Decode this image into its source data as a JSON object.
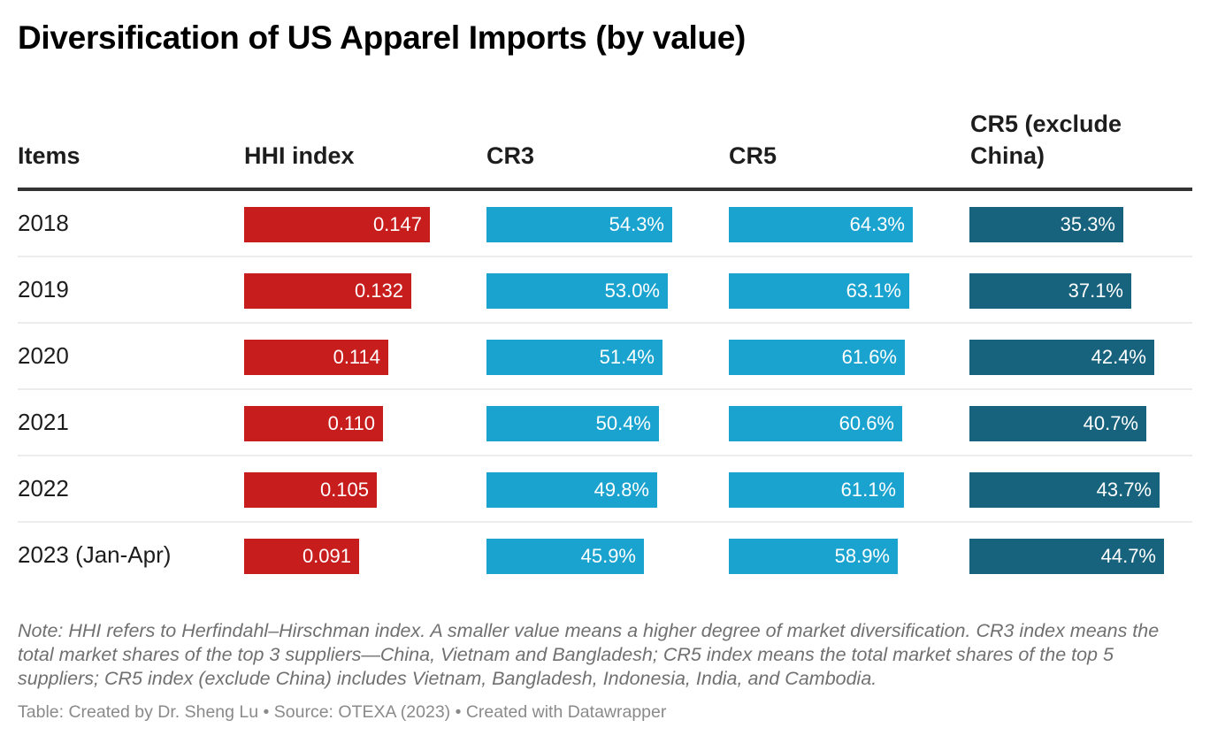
{
  "title": "Diversification of US Apparel Imports (by value)",
  "colors": {
    "hhi": "#c81d1d",
    "cr3": "#1ba3cf",
    "cr5": "#1ba3cf",
    "cr5_ex_china": "#17627c"
  },
  "columns": [
    "Items",
    "HHI index",
    "CR3",
    "CR5",
    "CR5 (exclude China)"
  ],
  "rows": [
    {
      "item": "2018",
      "hhi": "0.147",
      "cr3": "54.3%",
      "cr5": "64.3%",
      "cr5x": "35.3%"
    },
    {
      "item": "2019",
      "hhi": "0.132",
      "cr3": "53.0%",
      "cr5": "63.1%",
      "cr5x": "37.1%"
    },
    {
      "item": "2020",
      "hhi": "0.114",
      "cr3": "51.4%",
      "cr5": "61.6%",
      "cr5x": "42.4%"
    },
    {
      "item": "2021",
      "hhi": "0.110",
      "cr3": "50.4%",
      "cr5": "60.6%",
      "cr5x": "40.7%"
    },
    {
      "item": "2022",
      "hhi": "0.105",
      "cr3": "49.8%",
      "cr5": "61.1%",
      "cr5x": "43.7%"
    },
    {
      "item": "2023 (Jan-Apr)",
      "hhi": "0.091",
      "cr3": "45.9%",
      "cr5": "58.9%",
      "cr5x": "44.7%"
    }
  ],
  "note": "Note: HHI refers to Herfindahl–Hirschman index. A smaller value means a higher degree of market diversification. CR3 index means the total market shares of the top 3 suppliers—China, Vietnam and Bangladesh; CR5 index means the total market shares of the top 5 suppliers; CR5 index (exclude China) includes Vietnam, Bangladesh, Indonesia, India, and Cambodia.",
  "source": "Table: Created by Dr. Sheng Lu • Source: OTEXA (2023) • Created with Datawrapper",
  "chart_data": {
    "type": "table",
    "title": "Diversification of US Apparel Imports (by value)",
    "categories": [
      "2018",
      "2019",
      "2020",
      "2021",
      "2022",
      "2023 (Jan-Apr)"
    ],
    "series": [
      {
        "name": "HHI index",
        "values": [
          0.147,
          0.132,
          0.114,
          0.11,
          0.105,
          0.091
        ]
      },
      {
        "name": "CR3",
        "unit": "%",
        "values": [
          54.3,
          53.0,
          51.4,
          50.4,
          49.8,
          45.9
        ]
      },
      {
        "name": "CR5",
        "unit": "%",
        "values": [
          64.3,
          63.1,
          61.6,
          60.6,
          61.1,
          58.9
        ]
      },
      {
        "name": "CR5 (exclude China)",
        "unit": "%",
        "values": [
          35.3,
          37.1,
          42.4,
          40.7,
          43.7,
          44.7
        ]
      }
    ],
    "xlabel": "",
    "ylabel": ""
  }
}
